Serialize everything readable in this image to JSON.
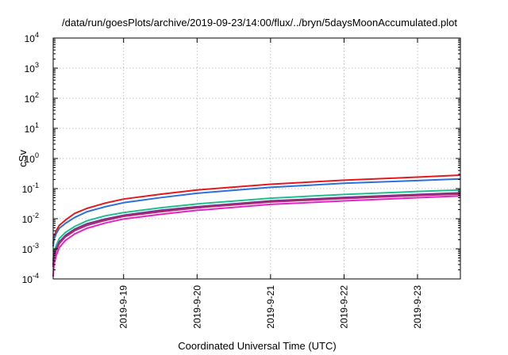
{
  "chart_data": {
    "type": "line",
    "title": "/data/run/goesPlots/archive/2019-09-23/14:00/flux/../bryn/5daysMoonAccumulated.plot",
    "xlabel": "Coordinated Universal Time (UTC)",
    "ylabel": "cSv",
    "y_scale": "log",
    "ylim": [
      0.0001,
      10000
    ],
    "xlim": [
      "2019-09-18 01:00",
      "2019-09-23 14:00"
    ],
    "grid": true,
    "y_ticks": [
      {
        "base": "10",
        "exp": "-4",
        "value": 0.0001
      },
      {
        "base": "10",
        "exp": "-3",
        "value": 0.001
      },
      {
        "base": "10",
        "exp": "-2",
        "value": 0.01
      },
      {
        "base": "10",
        "exp": "-1",
        "value": 0.1
      },
      {
        "base": "10",
        "exp": "0",
        "value": 1
      },
      {
        "base": "10",
        "exp": "1",
        "value": 10
      },
      {
        "base": "10",
        "exp": "2",
        "value": 100
      },
      {
        "base": "10",
        "exp": "3",
        "value": 1000
      },
      {
        "base": "10",
        "exp": "4",
        "value": 10000
      }
    ],
    "x_ticks": [
      {
        "label": "2019-9-19",
        "value": "2019-09-19 00:00"
      },
      {
        "label": "2019-9-20",
        "value": "2019-09-20 00:00"
      },
      {
        "label": "2019-9-21",
        "value": "2019-09-21 00:00"
      },
      {
        "label": "2019-9-22",
        "value": "2019-09-22 00:00"
      },
      {
        "label": "2019-9-23",
        "value": "2019-09-23 00:00"
      }
    ],
    "series": [
      {
        "color": "#e41a1c",
        "x": [
          "2019-09-18 01:00",
          "2019-09-18 01:15",
          "2019-09-18 02:00",
          "2019-09-18 03:00",
          "2019-09-18 05:00",
          "2019-09-18 08:00",
          "2019-09-18 12:00",
          "2019-09-18 18:00",
          "2019-09-19 00:00",
          "2019-09-19 12:00",
          "2019-09-20 00:00",
          "2019-09-21 00:00",
          "2019-09-22 00:00",
          "2019-09-23 00:00",
          "2019-09-23 14:00"
        ],
        "y": [
          0.0015,
          0.0025,
          0.004,
          0.006,
          0.009,
          0.015,
          0.022,
          0.033,
          0.045,
          0.065,
          0.09,
          0.14,
          0.19,
          0.24,
          0.28
        ]
      },
      {
        "color": "#2c6fdd",
        "x": [
          "2019-09-18 01:00",
          "2019-09-18 01:15",
          "2019-09-18 02:00",
          "2019-09-18 03:00",
          "2019-09-18 05:00",
          "2019-09-18 08:00",
          "2019-09-18 12:00",
          "2019-09-18 18:00",
          "2019-09-19 00:00",
          "2019-09-19 12:00",
          "2019-09-20 00:00",
          "2019-09-21 00:00",
          "2019-09-22 00:00",
          "2019-09-23 00:00",
          "2019-09-23 14:00"
        ],
        "y": [
          0.0012,
          0.002,
          0.0032,
          0.0048,
          0.007,
          0.011,
          0.017,
          0.025,
          0.034,
          0.05,
          0.07,
          0.11,
          0.15,
          0.185,
          0.21
        ]
      },
      {
        "color": "#1fbf8f",
        "x": [
          "2019-09-18 01:00",
          "2019-09-18 01:15",
          "2019-09-18 02:00",
          "2019-09-18 03:00",
          "2019-09-18 05:00",
          "2019-09-18 08:00",
          "2019-09-18 12:00",
          "2019-09-18 18:00",
          "2019-09-19 00:00",
          "2019-09-19 12:00",
          "2019-09-20 00:00",
          "2019-09-21 00:00",
          "2019-09-22 00:00",
          "2019-09-23 00:00",
          "2019-09-23 14:00"
        ],
        "y": [
          0.0004,
          0.0008,
          0.0013,
          0.0022,
          0.0035,
          0.0055,
          0.0085,
          0.0125,
          0.016,
          0.023,
          0.031,
          0.048,
          0.064,
          0.08,
          0.09
        ]
      },
      {
        "color": "#7b2d8e",
        "x": [
          "2019-09-18 01:00",
          "2019-09-18 01:15",
          "2019-09-18 02:00",
          "2019-09-18 03:00",
          "2019-09-18 05:00",
          "2019-09-18 08:00",
          "2019-09-18 12:00",
          "2019-09-18 18:00",
          "2019-09-19 00:00",
          "2019-09-19 12:00",
          "2019-09-20 00:00",
          "2019-09-21 00:00",
          "2019-09-22 00:00",
          "2019-09-23 00:00",
          "2019-09-23 14:00"
        ],
        "y": [
          0.0003,
          0.0006,
          0.001,
          0.0017,
          0.0028,
          0.0045,
          0.0068,
          0.0098,
          0.013,
          0.019,
          0.025,
          0.039,
          0.051,
          0.064,
          0.072
        ]
      },
      {
        "color": "#b0286d",
        "x": [
          "2019-09-18 01:00",
          "2019-09-18 01:15",
          "2019-09-18 02:00",
          "2019-09-18 03:00",
          "2019-09-18 05:00",
          "2019-09-18 08:00",
          "2019-09-18 12:00",
          "2019-09-18 18:00",
          "2019-09-19 00:00",
          "2019-09-19 12:00",
          "2019-09-20 00:00",
          "2019-09-21 00:00",
          "2019-09-22 00:00",
          "2019-09-23 00:00",
          "2019-09-23 14:00"
        ],
        "y": [
          0.00025,
          0.0005,
          0.0009,
          0.0015,
          0.0025,
          0.004,
          0.006,
          0.0088,
          0.012,
          0.017,
          0.023,
          0.036,
          0.047,
          0.059,
          0.066
        ]
      },
      {
        "color": "#e026c8",
        "x": [
          "2019-09-18 01:00",
          "2019-09-18 01:15",
          "2019-09-18 02:00",
          "2019-09-18 03:00",
          "2019-09-18 05:00",
          "2019-09-18 08:00",
          "2019-09-18 12:00",
          "2019-09-18 18:00",
          "2019-09-19 00:00",
          "2019-09-19 12:00",
          "2019-09-20 00:00",
          "2019-09-21 00:00",
          "2019-09-22 00:00",
          "2019-09-23 00:00",
          "2019-09-23 14:00"
        ],
        "y": [
          0.00012,
          0.0003,
          0.0006,
          0.0011,
          0.0019,
          0.0031,
          0.0048,
          0.0072,
          0.0098,
          0.014,
          0.019,
          0.03,
          0.039,
          0.05,
          0.057
        ]
      }
    ]
  }
}
